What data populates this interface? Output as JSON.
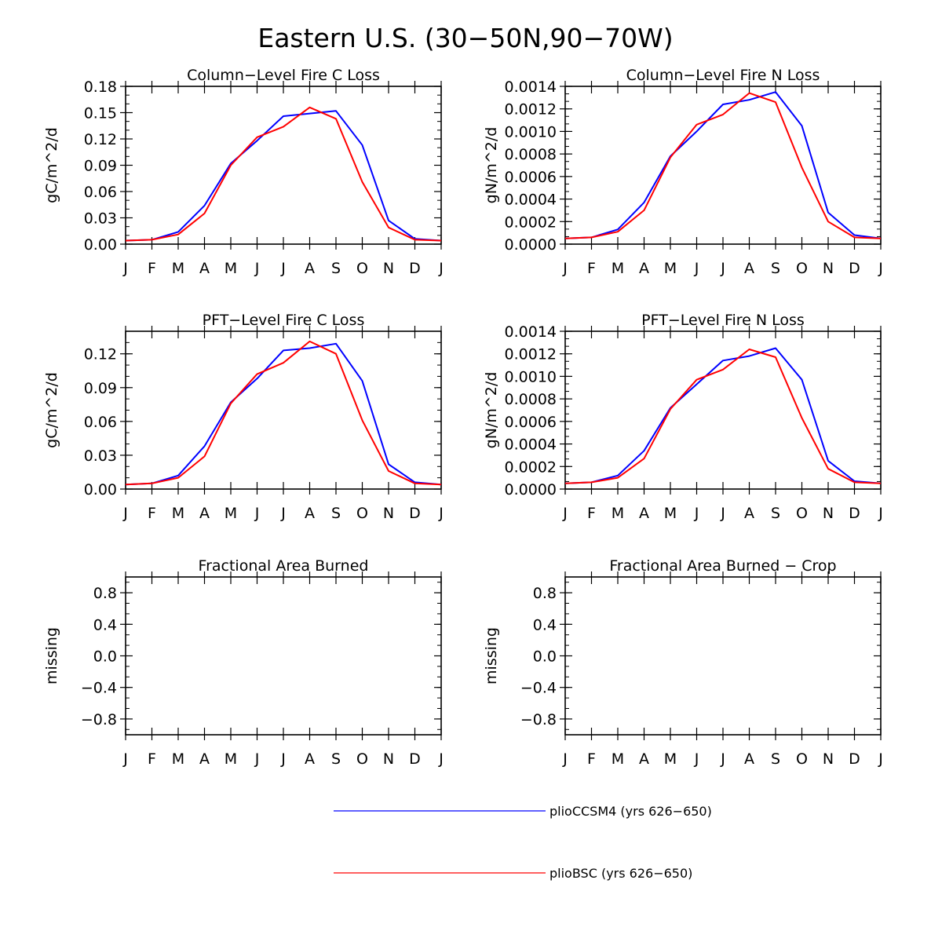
{
  "figure": {
    "title": "Eastern U.S. (30−50N,90−70W)"
  },
  "colors": {
    "plioCCSM4": "#0000ff",
    "plioBSC": "#ff0000",
    "axis": "#000000"
  },
  "chart_data": [
    {
      "type": "line",
      "title": "Column−Level Fire C Loss",
      "ylabel": "gC/m^2/d",
      "xlabel": "",
      "categories": [
        "J",
        "F",
        "M",
        "A",
        "M",
        "J",
        "J",
        "A",
        "S",
        "O",
        "N",
        "D",
        "J"
      ],
      "ylim": [
        0,
        0.18
      ],
      "yticks": [
        "0.00",
        "0.03",
        "0.06",
        "0.09",
        "0.12",
        "0.15",
        "0.18"
      ],
      "series": [
        {
          "name": "plioCCSM4 (yrs 626−650)",
          "values": [
            0.004,
            0.005,
            0.014,
            0.044,
            0.092,
            0.118,
            0.146,
            0.149,
            0.152,
            0.113,
            0.027,
            0.006,
            0.004
          ]
        },
        {
          "name": "plioBSC (yrs 626−650)",
          "values": [
            0.004,
            0.005,
            0.011,
            0.035,
            0.09,
            0.122,
            0.134,
            0.156,
            0.143,
            0.071,
            0.019,
            0.005,
            0.004
          ]
        }
      ]
    },
    {
      "type": "line",
      "title": "Column−Level Fire N Loss",
      "ylabel": "gN/m^2/d",
      "xlabel": "",
      "categories": [
        "J",
        "F",
        "M",
        "A",
        "M",
        "J",
        "J",
        "A",
        "S",
        "O",
        "N",
        "D",
        "J"
      ],
      "ylim": [
        0,
        0.0014
      ],
      "yticks": [
        "0.0000",
        "0.0002",
        "0.0004",
        "0.0006",
        "0.0008",
        "0.0010",
        "0.0012",
        "0.0014"
      ],
      "series": [
        {
          "name": "plioCCSM4 (yrs 626−650)",
          "values": [
            5e-05,
            6e-05,
            0.00013,
            0.00037,
            0.00078,
            0.001,
            0.00124,
            0.00128,
            0.00135,
            0.00105,
            0.00028,
            8e-05,
            5e-05
          ]
        },
        {
          "name": "plioBSC (yrs 626−650)",
          "values": [
            5e-05,
            6e-05,
            0.00011,
            0.0003,
            0.00077,
            0.00106,
            0.00115,
            0.00134,
            0.00126,
            0.00068,
            0.0002,
            6e-05,
            5e-05
          ]
        }
      ]
    },
    {
      "type": "line",
      "title": "PFT−Level Fire C Loss",
      "ylabel": "gC/m^2/d",
      "xlabel": "",
      "categories": [
        "J",
        "F",
        "M",
        "A",
        "M",
        "J",
        "J",
        "A",
        "S",
        "O",
        "N",
        "D",
        "J"
      ],
      "ylim": [
        0,
        0.14
      ],
      "yticks": [
        "0.00",
        "0.03",
        "0.06",
        "0.09",
        "0.12"
      ],
      "series": [
        {
          "name": "plioCCSM4 (yrs 626−650)",
          "values": [
            0.004,
            0.005,
            0.012,
            0.038,
            0.077,
            0.098,
            0.123,
            0.125,
            0.129,
            0.096,
            0.022,
            0.006,
            0.004
          ]
        },
        {
          "name": "plioBSC (yrs 626−650)",
          "values": [
            0.004,
            0.005,
            0.01,
            0.029,
            0.076,
            0.102,
            0.112,
            0.131,
            0.12,
            0.061,
            0.016,
            0.005,
            0.004
          ]
        }
      ]
    },
    {
      "type": "line",
      "title": "PFT−Level Fire N Loss",
      "ylabel": "gN/m^2/d",
      "xlabel": "",
      "categories": [
        "J",
        "F",
        "M",
        "A",
        "M",
        "J",
        "J",
        "A",
        "S",
        "O",
        "N",
        "D",
        "J"
      ],
      "ylim": [
        0,
        0.0014
      ],
      "yticks": [
        "0.0000",
        "0.0002",
        "0.0004",
        "0.0006",
        "0.0008",
        "0.0010",
        "0.0012",
        "0.0014"
      ],
      "series": [
        {
          "name": "plioCCSM4 (yrs 626−650)",
          "values": [
            5e-05,
            6e-05,
            0.00012,
            0.00034,
            0.00072,
            0.00093,
            0.00114,
            0.00118,
            0.00125,
            0.00097,
            0.00025,
            7e-05,
            5e-05
          ]
        },
        {
          "name": "plioBSC (yrs 626−650)",
          "values": [
            5e-05,
            6e-05,
            0.0001,
            0.00027,
            0.00071,
            0.00097,
            0.00106,
            0.00124,
            0.00117,
            0.00063,
            0.00018,
            6e-05,
            5e-05
          ]
        }
      ]
    },
    {
      "type": "line",
      "title": "Fractional Area Burned",
      "ylabel": "missing",
      "xlabel": "",
      "categories": [
        "J",
        "F",
        "M",
        "A",
        "M",
        "J",
        "J",
        "A",
        "S",
        "O",
        "N",
        "D",
        "J"
      ],
      "ylim": [
        -1,
        1
      ],
      "yticks": [
        "−0.8",
        "−0.4",
        "0.0",
        "0.4",
        "0.8"
      ],
      "series": []
    },
    {
      "type": "line",
      "title": "Fractional Area Burned − Crop",
      "ylabel": "missing",
      "xlabel": "",
      "categories": [
        "J",
        "F",
        "M",
        "A",
        "M",
        "J",
        "J",
        "A",
        "S",
        "O",
        "N",
        "D",
        "J"
      ],
      "ylim": [
        -1,
        1
      ],
      "yticks": [
        "−0.8",
        "−0.4",
        "0.0",
        "0.4",
        "0.8"
      ],
      "series": []
    }
  ],
  "legend": {
    "entries": [
      {
        "label": "plioCCSM4 (yrs 626−650)",
        "color": "#0000ff"
      },
      {
        "label": "plioBSC (yrs 626−650)",
        "color": "#ff0000"
      }
    ]
  }
}
